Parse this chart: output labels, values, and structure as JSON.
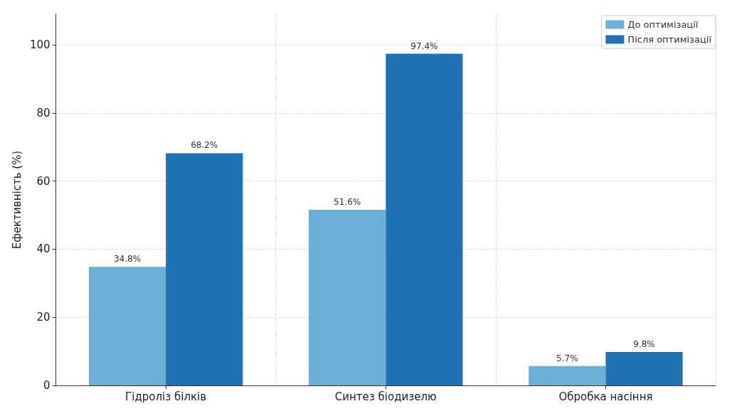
{
  "chart_data": {
    "type": "bar",
    "ylabel": "Ефективність (%)",
    "categories": [
      "Гідроліз білків",
      "Синтез біодизелю",
      "Обробка насіння"
    ],
    "series": [
      {
        "name": "До оптимізації",
        "color": "#6baed6",
        "values": [
          34.8,
          51.6,
          5.7
        ],
        "value_labels": [
          "34.8%",
          "51.6%",
          "5.7%"
        ]
      },
      {
        "name": "Після оптимізації",
        "color": "#2171b5",
        "values": [
          68.2,
          97.4,
          9.8
        ],
        "value_labels": [
          "68.2%",
          "97.4%",
          "9.8%"
        ]
      }
    ],
    "ylim": [
      0,
      109
    ],
    "yticks": [
      0,
      20,
      40,
      60,
      80,
      100
    ],
    "grid": true,
    "legend": "top right"
  }
}
